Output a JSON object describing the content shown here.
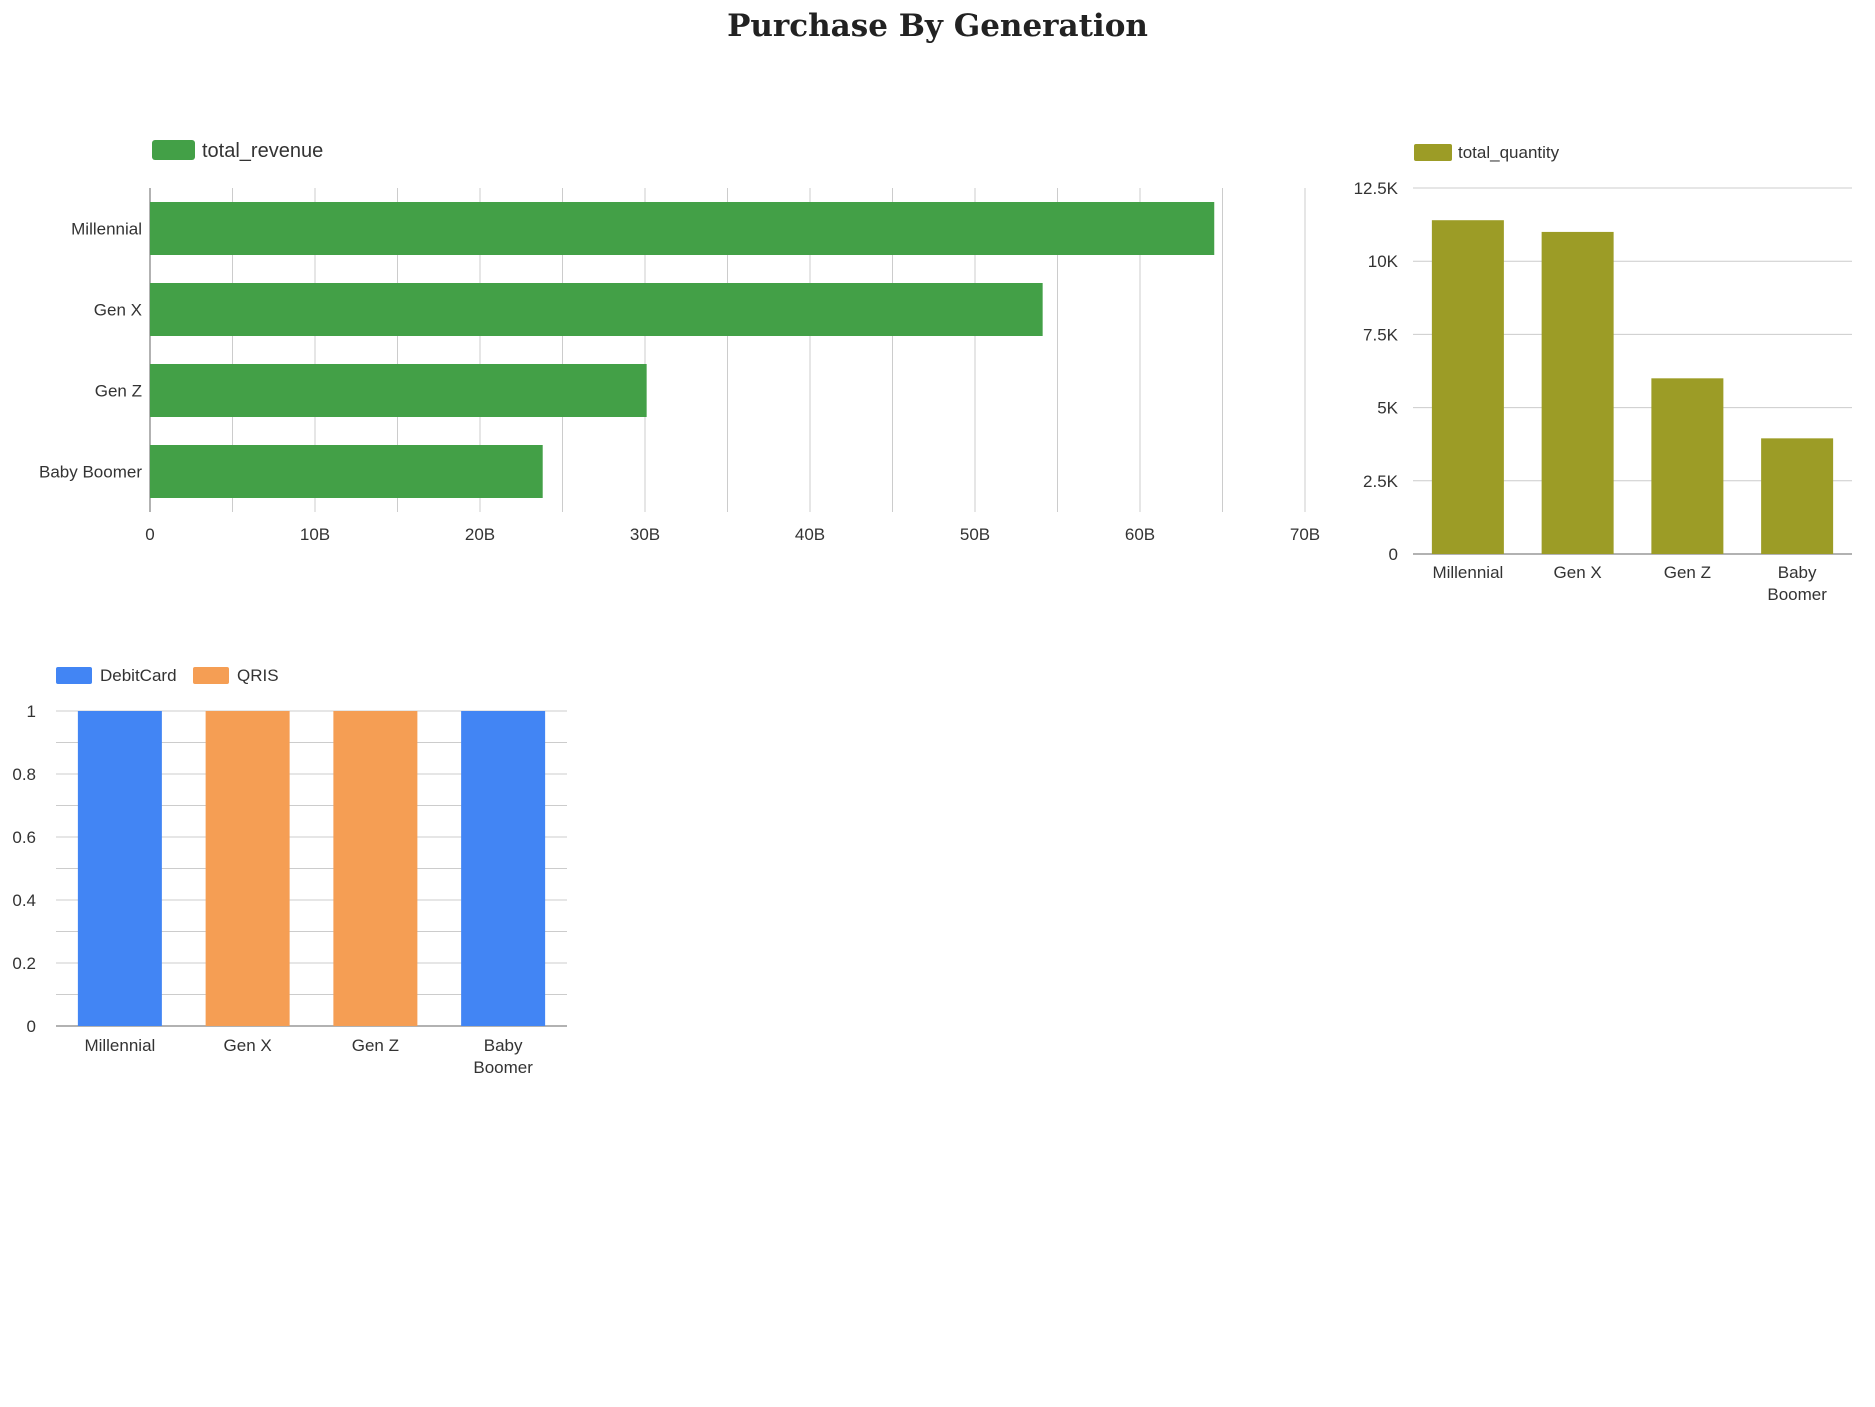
{
  "page": {
    "title": "Purchase By Generation"
  },
  "colors": {
    "revenue": "#43a047",
    "quantity": "#9c9c26",
    "debit": "#4285f4",
    "qris": "#f59e54",
    "grid": "#cccccc",
    "axis": "#999999"
  },
  "chart_data": [
    {
      "type": "bar",
      "orientation": "horizontal",
      "categories": [
        "Millennial",
        "Gen X",
        "Gen Z",
        "Baby Boomer"
      ],
      "series": [
        {
          "name": "total_revenue",
          "values": [
            64.5,
            54.1,
            30.1,
            23.8
          ]
        }
      ],
      "xlim": [
        0,
        70
      ],
      "xticks": [
        "0",
        "10B",
        "20B",
        "30B",
        "40B",
        "50B",
        "60B",
        "70B"
      ],
      "grid": true,
      "legend": "top-left"
    },
    {
      "type": "bar",
      "categories": [
        "Millennial",
        "Gen X",
        "Gen Z",
        "Baby Boomer"
      ],
      "series": [
        {
          "name": "total_quantity",
          "values": [
            11400,
            11000,
            6000,
            3950
          ]
        }
      ],
      "ylim": [
        0,
        12500
      ],
      "yticks": [
        "0",
        "2.5K",
        "5K",
        "7.5K",
        "10K",
        "12.5K"
      ],
      "grid": true,
      "legend": "top-left"
    },
    {
      "type": "bar",
      "stacked": true,
      "categories": [
        "Millennial",
        "Gen X",
        "Gen Z",
        "Baby Boomer"
      ],
      "series": [
        {
          "name": "DebitCard",
          "values": [
            1,
            0,
            0,
            1
          ]
        },
        {
          "name": "QRIS",
          "values": [
            0,
            1,
            1,
            0
          ]
        }
      ],
      "ylim": [
        0,
        1
      ],
      "yticks": [
        "0",
        "0.2",
        "0.4",
        "0.6",
        "0.8",
        "1"
      ],
      "grid": true,
      "legend": "top-left"
    }
  ]
}
